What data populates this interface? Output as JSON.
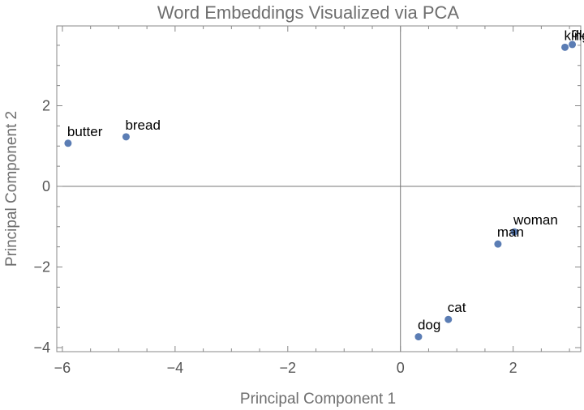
{
  "chart_data": {
    "type": "scatter",
    "title": "Word Embeddings Visualized via PCA",
    "xlabel": "Principal Component 1",
    "ylabel": "Principal Component 2",
    "xlim": [
      -6.1,
      3.2
    ],
    "ylim": [
      -4.1,
      3.98
    ],
    "x_ticks": [
      -6,
      -4,
      -2,
      0,
      2
    ],
    "y_ticks": [
      -4,
      -2,
      0,
      2
    ],
    "x_tick_labels": [
      "−6",
      "−4",
      "−2",
      "0",
      "2"
    ],
    "y_tick_labels": [
      "−4",
      "−2",
      "0",
      "2"
    ],
    "grid": false,
    "frame": true,
    "point_color": "#5b7db4",
    "points": [
      {
        "label": "butter",
        "x": -5.9,
        "y": 1.07
      },
      {
        "label": "bread",
        "x": -4.87,
        "y": 1.23
      },
      {
        "label": "dog",
        "x": 0.32,
        "y": -3.73
      },
      {
        "label": "cat",
        "x": 0.85,
        "y": -3.3
      },
      {
        "label": "man",
        "x": 1.73,
        "y": -1.43
      },
      {
        "label": "woman",
        "x": 2.02,
        "y": -1.13
      },
      {
        "label": "king",
        "x": 2.92,
        "y": 3.45
      },
      {
        "label": "queen",
        "x": 3.05,
        "y": 3.52
      }
    ]
  }
}
